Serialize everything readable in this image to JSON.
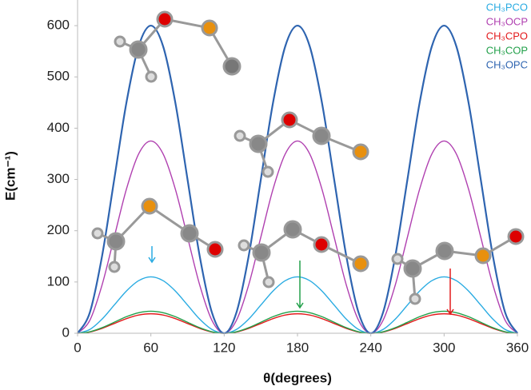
{
  "chart_data": {
    "type": "line",
    "x_label": "θ(degrees)",
    "y_label": "E(cm⁻¹)",
    "x": [
      0,
      10,
      20,
      30,
      40,
      50,
      60,
      70,
      80,
      90,
      100,
      110,
      120,
      130,
      140,
      150,
      160,
      170,
      180,
      190,
      200,
      210,
      220,
      230,
      240,
      250,
      260,
      270,
      280,
      290,
      300,
      310,
      320,
      330,
      340,
      350,
      360
    ],
    "xlim": [
      0,
      360
    ],
    "xticks": [
      0,
      60,
      120,
      180,
      240,
      300,
      360
    ],
    "ylim": [
      0,
      650
    ],
    "yticks": [
      0,
      100,
      200,
      300,
      400,
      500,
      600
    ],
    "grid": false,
    "legend": "top-right",
    "series": [
      {
        "name": "CH₃PCO",
        "color": "#29abe2",
        "values": [
          0,
          7.4,
          27.5,
          55,
          82.5,
          102.6,
          110,
          102.6,
          82.5,
          55,
          27.5,
          7.4,
          0,
          7.4,
          27.5,
          55,
          82.5,
          102.6,
          110,
          102.6,
          82.5,
          55,
          27.5,
          7.4,
          0,
          7.4,
          27.5,
          55,
          82.5,
          102.6,
          110,
          102.6,
          82.5,
          55,
          27.5,
          7.4,
          0
        ]
      },
      {
        "name": "CH₃OCP",
        "color": "#b040b0",
        "values": [
          0,
          25.1,
          93.8,
          187.5,
          281.3,
          349.9,
          375,
          349.9,
          281.3,
          187.5,
          93.8,
          25.1,
          0,
          25.1,
          93.8,
          187.5,
          281.3,
          349.9,
          375,
          349.9,
          281.3,
          187.5,
          93.8,
          25.1,
          0,
          25.1,
          93.8,
          187.5,
          281.3,
          349.9,
          375,
          349.9,
          281.3,
          187.5,
          93.8,
          25.1,
          0
        ]
      },
      {
        "name": "CH₃CPO",
        "color": "#e31a1c",
        "values": [
          0,
          2.5,
          9.5,
          19,
          28.5,
          35.5,
          38,
          35.5,
          28.5,
          19,
          9.5,
          2.5,
          0,
          2.5,
          9.5,
          19,
          28.5,
          35.5,
          38,
          35.5,
          28.5,
          19,
          9.5,
          2.5,
          0,
          2.5,
          9.5,
          19,
          28.5,
          35.5,
          38,
          35.5,
          28.5,
          19,
          9.5,
          2.5,
          0
        ]
      },
      {
        "name": "CH₃COP",
        "color": "#22a04a",
        "values": [
          0,
          2.9,
          10.8,
          21.5,
          32.3,
          40.1,
          43,
          40.1,
          32.3,
          21.5,
          10.8,
          2.9,
          0,
          2.9,
          10.8,
          21.5,
          32.3,
          40.1,
          43,
          40.1,
          32.3,
          21.5,
          10.8,
          2.9,
          0,
          2.9,
          10.8,
          21.5,
          32.3,
          40.1,
          43,
          40.1,
          32.3,
          21.5,
          10.8,
          2.9,
          0
        ]
      },
      {
        "name": "CH₃OPC",
        "color": "#2e64b0",
        "values": [
          0,
          40.2,
          150,
          300,
          450,
          559.8,
          600,
          559.8,
          450,
          300,
          150,
          40.2,
          0,
          40.2,
          150,
          300,
          450,
          559.8,
          600,
          559.8,
          450,
          300,
          150,
          40.2,
          0,
          40.2,
          150,
          300,
          450,
          559.8,
          600,
          559.8,
          450,
          300,
          150,
          40.2,
          0
        ]
      }
    ]
  }
}
